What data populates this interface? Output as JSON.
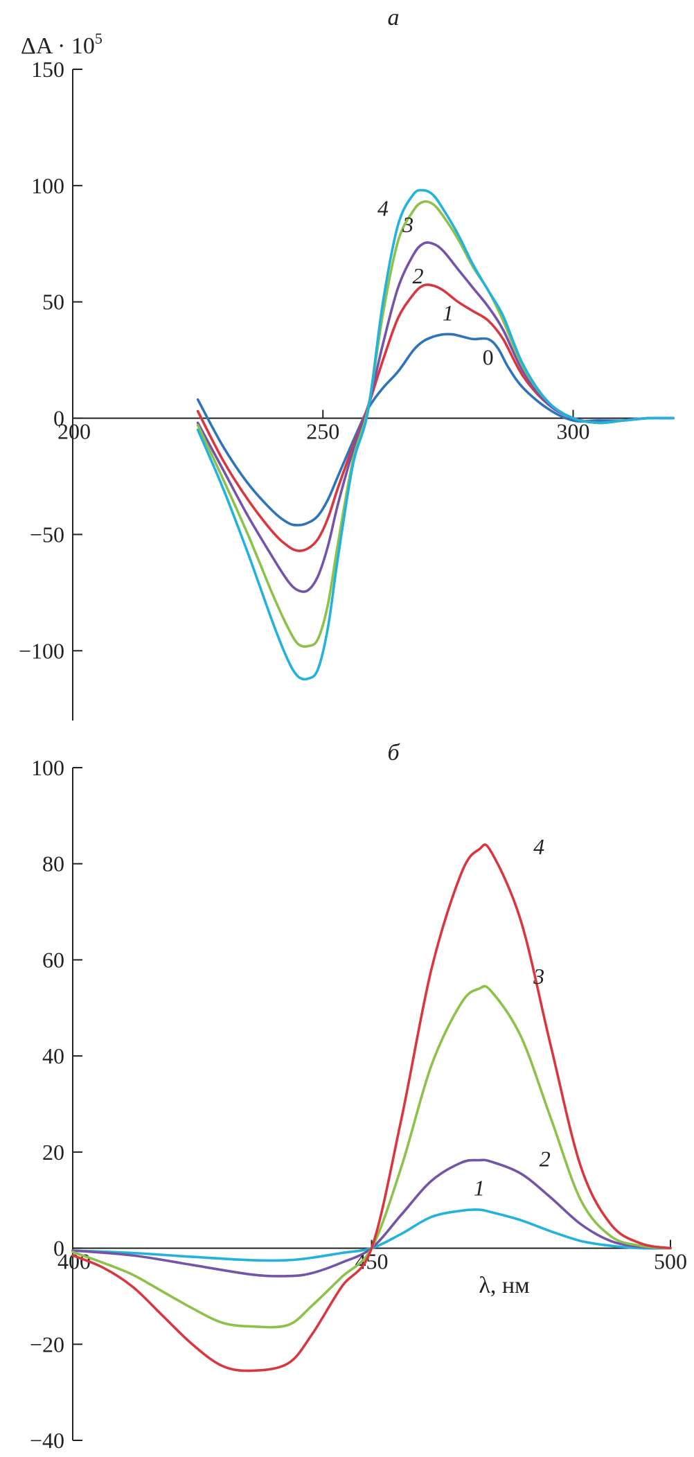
{
  "chart_data": [
    {
      "panel_label": "а",
      "type": "line",
      "ylabel": "ΔA · 10",
      "ylabel_superscript": "5",
      "xlabel": "",
      "xlim": [
        200,
        320
      ],
      "ylim": [
        -130,
        150
      ],
      "x_ticks": [
        200,
        250,
        300
      ],
      "y_ticks": [
        -100,
        -50,
        0,
        50,
        100,
        150
      ],
      "x_tick_labels": [
        "200",
        "250",
        "300"
      ],
      "y_tick_labels": [
        "−100",
        "−50",
        "0",
        "50",
        "100",
        "150"
      ],
      "grid": false,
      "series": [
        {
          "name": "0",
          "color": "#2e74bb",
          "label_at": [
            283,
            23
          ],
          "italic": false,
          "x": [
            225,
            230,
            235,
            240,
            243,
            245,
            247,
            249,
            251,
            253,
            256,
            259,
            262,
            265,
            268,
            270,
            272,
            274,
            276,
            278,
            280,
            283,
            285,
            287,
            290,
            295,
            300,
            305,
            310,
            315,
            320
          ],
          "y": [
            8,
            -12,
            -28,
            -40,
            -45,
            -46,
            -45,
            -42,
            -35,
            -25,
            -10,
            4,
            13,
            20,
            29,
            33,
            35,
            36,
            36,
            35,
            34,
            34,
            30,
            22,
            13,
            4,
            -1,
            -1,
            -1,
            0,
            0
          ]
        },
        {
          "name": "1",
          "color": "#d9373f",
          "label_at": [
            275,
            42
          ],
          "italic": true,
          "x": [
            225,
            230,
            235,
            240,
            243,
            245,
            247,
            249,
            251,
            253,
            256,
            259,
            262,
            265,
            268,
            270,
            272,
            274,
            277,
            280,
            283,
            286,
            290,
            295,
            300,
            305,
            310,
            315,
            320
          ],
          "y": [
            3,
            -18,
            -35,
            -49,
            -55,
            -57,
            -56,
            -52,
            -43,
            -30,
            -12,
            5,
            25,
            43,
            53,
            57,
            57,
            55,
            50,
            46,
            42,
            34,
            18,
            6,
            0,
            -2,
            -1,
            0,
            0
          ]
        },
        {
          "name": "2",
          "color": "#7454a8",
          "label_at": [
            269,
            58
          ],
          "italic": true,
          "x": [
            225,
            230,
            235,
            240,
            243,
            245,
            247,
            249,
            251,
            253,
            256,
            259,
            262,
            265,
            268,
            270,
            272,
            274,
            277,
            280,
            283,
            286,
            290,
            295,
            300,
            305,
            310,
            315,
            320
          ],
          "y": [
            -2,
            -22,
            -42,
            -60,
            -70,
            -74,
            -74,
            -68,
            -55,
            -37,
            -14,
            5,
            32,
            56,
            70,
            75,
            75,
            72,
            64,
            56,
            48,
            38,
            20,
            6,
            0,
            -2,
            -1,
            0,
            0
          ]
        },
        {
          "name": "3",
          "color": "#8cc14a",
          "label_at": [
            267,
            80
          ],
          "italic": true,
          "x": [
            225,
            230,
            235,
            240,
            243,
            245,
            247,
            249,
            251,
            253,
            256,
            259,
            262,
            265,
            268,
            270,
            272,
            274,
            277,
            280,
            283,
            286,
            290,
            295,
            300,
            305,
            310,
            315,
            320
          ],
          "y": [
            -3,
            -26,
            -50,
            -76,
            -90,
            -97,
            -98,
            -95,
            -80,
            -54,
            -18,
            4,
            45,
            76,
            89,
            93,
            92,
            87,
            77,
            65,
            55,
            42,
            22,
            7,
            0,
            -2,
            -1,
            0,
            0
          ]
        },
        {
          "name": "4",
          "color": "#22b2dc",
          "label_at": [
            262,
            87
          ],
          "italic": true,
          "x": [
            225,
            230,
            235,
            240,
            243,
            245,
            247,
            249,
            251,
            253,
            256,
            259,
            262,
            265,
            268,
            270,
            272,
            274,
            277,
            280,
            283,
            286,
            290,
            295,
            300,
            305,
            310,
            315,
            320
          ],
          "y": [
            -5,
            -30,
            -58,
            -88,
            -104,
            -111,
            -112,
            -108,
            -90,
            -60,
            -20,
            3,
            50,
            83,
            96,
            98,
            96,
            90,
            79,
            66,
            55,
            44,
            23,
            7,
            0,
            -2,
            -1,
            0,
            0
          ]
        }
      ]
    },
    {
      "panel_label": "б",
      "type": "line",
      "ylabel": "",
      "xlabel": "λ, нм",
      "xlim": [
        400,
        500
      ],
      "ylim": [
        -40,
        100
      ],
      "x_ticks": [
        400,
        450,
        500
      ],
      "y_ticks": [
        -40,
        -20,
        0,
        20,
        40,
        60,
        80,
        100
      ],
      "x_tick_labels": [
        "400",
        "450",
        "500"
      ],
      "y_tick_labels": [
        "−40",
        "−20",
        "0",
        "20",
        "40",
        "60",
        "80",
        "100"
      ],
      "grid": false,
      "series": [
        {
          "name": "1",
          "color": "#22b2dc",
          "label_at": [
            468,
            11
          ],
          "italic": true,
          "x": [
            400,
            410,
            420,
            430,
            436,
            440,
            445,
            450,
            455,
            460,
            465,
            468,
            470,
            475,
            480,
            485,
            490,
            495,
            500
          ],
          "y": [
            -0.5,
            -1,
            -1.8,
            -2.5,
            -2.5,
            -2,
            -1,
            0,
            3,
            6.5,
            7.8,
            8,
            7.5,
            5.8,
            3.5,
            1.5,
            0.5,
            0,
            0
          ]
        },
        {
          "name": "2",
          "color": "#7454a8",
          "label_at": [
            479,
            17
          ],
          "italic": true,
          "x": [
            400,
            410,
            420,
            430,
            436,
            440,
            445,
            450,
            455,
            460,
            465,
            468,
            470,
            475,
            480,
            485,
            490,
            495,
            500
          ],
          "y": [
            -0.5,
            -1.5,
            -3.5,
            -5.5,
            -5.8,
            -5.2,
            -3,
            0,
            7,
            14,
            17.8,
            18.3,
            18,
            15.5,
            10.5,
            5,
            1.5,
            0.3,
            0
          ]
        },
        {
          "name": "3",
          "color": "#8cc14a",
          "label_at": [
            478,
            55
          ],
          "italic": true,
          "x": [
            400,
            405,
            410,
            415,
            420,
            425,
            430,
            436,
            440,
            445,
            450,
            455,
            460,
            465,
            468,
            470,
            475,
            480,
            485,
            490,
            495,
            500
          ],
          "y": [
            -0.8,
            -3,
            -5.5,
            -9,
            -12.5,
            -15.5,
            -16.3,
            -16,
            -12,
            -6,
            0,
            17,
            38,
            51,
            54,
            53.5,
            44,
            27,
            10,
            2.5,
            0.5,
            0
          ]
        },
        {
          "name": "4",
          "color": "#d9373f",
          "label_at": [
            478,
            82
          ],
          "italic": true,
          "x": [
            400,
            405,
            410,
            415,
            420,
            425,
            430,
            436,
            440,
            445,
            450,
            455,
            460,
            465,
            468,
            470,
            475,
            480,
            485,
            490,
            495,
            500
          ],
          "y": [
            -1.5,
            -4,
            -8,
            -14,
            -20,
            -24.5,
            -25.5,
            -24,
            -18,
            -8,
            0,
            27,
            58,
            78,
            83,
            82.5,
            68,
            42,
            17,
            5,
            1,
            0
          ]
        }
      ]
    }
  ]
}
